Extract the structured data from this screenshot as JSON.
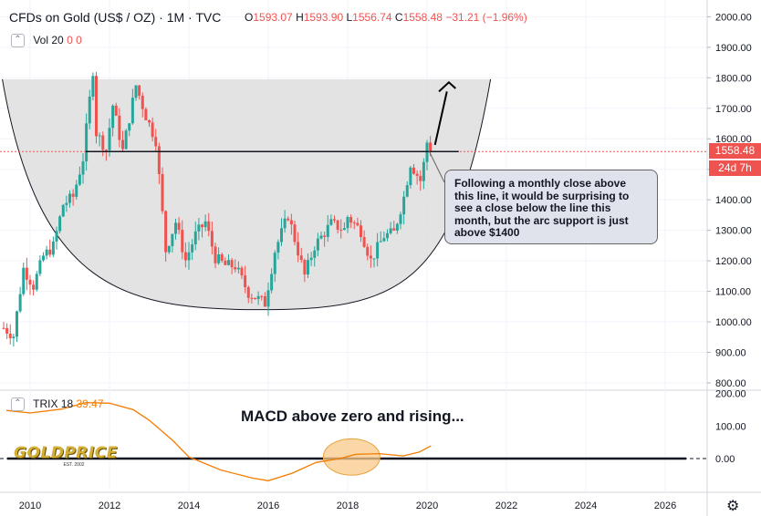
{
  "header": {
    "title": "CFDs on Gold (US$ / OZ) · 1M · TVC",
    "ohlc": [
      {
        "k": "O",
        "v": "1593.07"
      },
      {
        "k": "H",
        "v": "1593.90"
      },
      {
        "k": "L",
        "v": "1556.74"
      },
      {
        "k": "C",
        "v": "1558.48"
      },
      {
        "k": "",
        "v": "−31.21 (−1.96%)"
      }
    ]
  },
  "volume": {
    "label": "Vol 20",
    "v1": "0",
    "v2": "0"
  },
  "trix": {
    "label": "TRIX 18",
    "value": "39.47"
  },
  "last_price": {
    "value": "1558.48",
    "countdown": "24d 7h"
  },
  "annotations": {
    "note": "Following a monthly close above this line, it would be surprising to see a close below the line this month, but the arc support is just above $1400",
    "macd": "MACD above zero and rising...",
    "logo_word": "GOLDPRICE",
    "logo_sub": "EST. 2002"
  },
  "colors": {
    "up": "#26a69a",
    "down": "#ef5350",
    "trix_line": "#f57c00",
    "price_line": "#ef5350",
    "cup_fill": "#e0e0e0",
    "highlight": "#f9c98a"
  },
  "chart_data": [
    {
      "type": "candlestick",
      "title": "CFDs on Gold (US$ / OZ)",
      "interval": "1M",
      "x_ticks": [
        "2010",
        "2012",
        "2014",
        "2016",
        "2018",
        "2020",
        "2022",
        "2024",
        "2026"
      ],
      "y_ticks": [
        "800.00",
        "900.00",
        "1000.00",
        "1100.00",
        "1200.00",
        "1300.00",
        "1400.00",
        "1500.00",
        "1600.00",
        "1700.00",
        "1800.00",
        "1900.00",
        "2000.00"
      ],
      "ylim": [
        790,
        2030
      ],
      "resistance_level": 1558,
      "cup_top_level": 1795,
      "arc_bottom_level": 1040,
      "series": [
        {
          "date": "2009-05",
          "close": 980
        },
        {
          "date": "2009-08",
          "close": 955
        },
        {
          "date": "2009-11",
          "close": 1175
        },
        {
          "date": "2010-02",
          "close": 1118
        },
        {
          "date": "2010-05",
          "close": 1215
        },
        {
          "date": "2010-08",
          "close": 1248
        },
        {
          "date": "2010-11",
          "close": 1385
        },
        {
          "date": "2011-02",
          "close": 1410
        },
        {
          "date": "2011-05",
          "close": 1535
        },
        {
          "date": "2011-08",
          "close": 1825
        },
        {
          "date": "2011-09",
          "close": 1620
        },
        {
          "date": "2011-12",
          "close": 1565
        },
        {
          "date": "2012-02",
          "close": 1710
        },
        {
          "date": "2012-05",
          "close": 1560
        },
        {
          "date": "2012-09",
          "close": 1775
        },
        {
          "date": "2012-12",
          "close": 1675
        },
        {
          "date": "2013-03",
          "close": 1595
        },
        {
          "date": "2013-06",
          "close": 1234
        },
        {
          "date": "2013-09",
          "close": 1327
        },
        {
          "date": "2013-12",
          "close": 1202
        },
        {
          "date": "2014-03",
          "close": 1285
        },
        {
          "date": "2014-06",
          "close": 1327
        },
        {
          "date": "2014-09",
          "close": 1210
        },
        {
          "date": "2014-12",
          "close": 1185
        },
        {
          "date": "2015-03",
          "close": 1183
        },
        {
          "date": "2015-07",
          "close": 1095
        },
        {
          "date": "2015-12",
          "close": 1061
        },
        {
          "date": "2016-03",
          "close": 1233
        },
        {
          "date": "2016-07",
          "close": 1350
        },
        {
          "date": "2016-12",
          "close": 1152
        },
        {
          "date": "2017-03",
          "close": 1249
        },
        {
          "date": "2017-08",
          "close": 1322
        },
        {
          "date": "2017-12",
          "close": 1303
        },
        {
          "date": "2018-01",
          "close": 1345
        },
        {
          "date": "2018-05",
          "close": 1298
        },
        {
          "date": "2018-08",
          "close": 1201
        },
        {
          "date": "2018-12",
          "close": 1282
        },
        {
          "date": "2019-03",
          "close": 1292
        },
        {
          "date": "2019-06",
          "close": 1409
        },
        {
          "date": "2019-08",
          "close": 1520
        },
        {
          "date": "2019-11",
          "close": 1463
        },
        {
          "date": "2019-12",
          "close": 1517
        },
        {
          "date": "2020-01",
          "close": 1589
        },
        {
          "date": "2020-02",
          "close": 1558
        }
      ]
    },
    {
      "type": "line",
      "title": "TRIX 18",
      "y_ticks": [
        "0.00",
        "100.00",
        "200.00"
      ],
      "ylim": [
        -100,
        210
      ],
      "series": [
        {
          "x": [
            2009.4,
            2010.0,
            2010.8,
            2011.4,
            2012.0,
            2012.6,
            2013.0,
            2013.6,
            2014.0,
            2014.8,
            2015.6,
            2016.0,
            2016.6,
            2017.2,
            2017.8,
            2018.2,
            2018.8,
            2019.4,
            2019.8,
            2020.1
          ],
          "y": [
            148,
            140,
            152,
            172,
            170,
            150,
            118,
            55,
            5,
            -35,
            -60,
            -68,
            -45,
            -12,
            0,
            13,
            15,
            8,
            20,
            39
          ]
        }
      ]
    }
  ]
}
